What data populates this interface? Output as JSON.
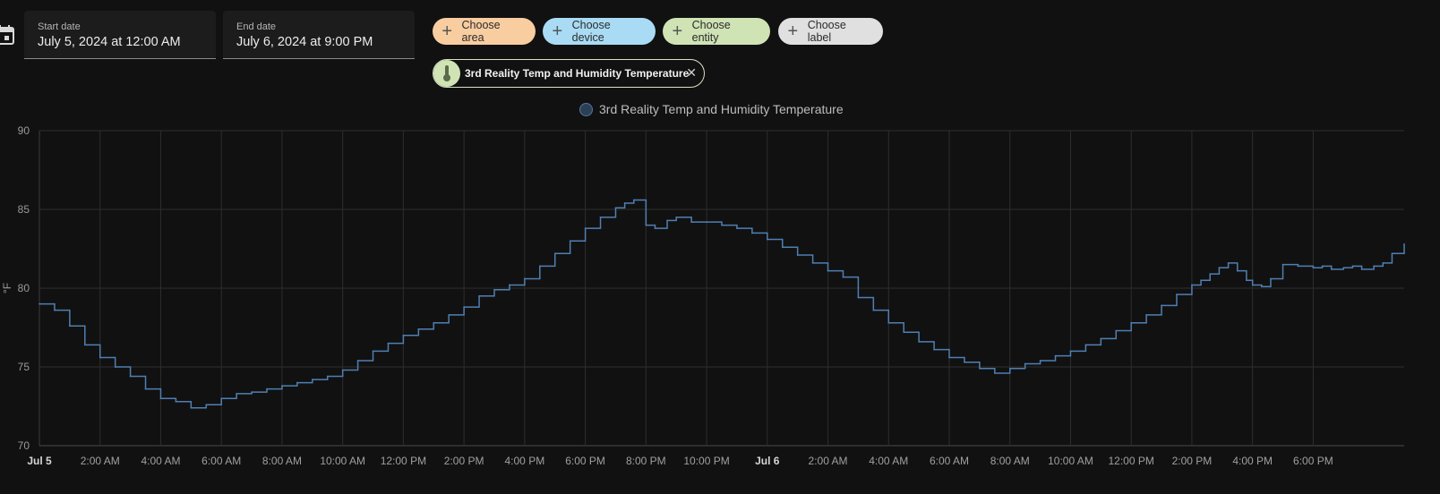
{
  "start_date": {
    "label": "Start date",
    "value": "July 5, 2024 at 12:00 AM"
  },
  "end_date": {
    "label": "End date",
    "value": "July 6, 2024 at 9:00 PM"
  },
  "chips": {
    "area": "Choose area",
    "device": "Choose device",
    "entity": "Choose entity",
    "label": "Choose label"
  },
  "selected_entity": "3rd Reality Temp and Humidity Temperature",
  "colors": {
    "area_chip": "#f8cda0",
    "device_chip": "#a9dcf4",
    "entity_chip": "#cfe3b5",
    "label_chip": "#e0e0e0",
    "series_line": "#4f7fb3"
  },
  "chart_data": {
    "type": "line",
    "legend_position": "top-center",
    "grid": true,
    "ylabel": "°F",
    "ylim": [
      70,
      90
    ],
    "yticks": [
      70,
      75,
      80,
      85,
      90
    ],
    "xlim": [
      0,
      45
    ],
    "x_ticks": [
      {
        "x": 0,
        "label": "Jul 5",
        "bold": true
      },
      {
        "x": 2,
        "label": "2:00 AM"
      },
      {
        "x": 4,
        "label": "4:00 AM"
      },
      {
        "x": 6,
        "label": "6:00 AM"
      },
      {
        "x": 8,
        "label": "8:00 AM"
      },
      {
        "x": 10,
        "label": "10:00 AM"
      },
      {
        "x": 12,
        "label": "12:00 PM"
      },
      {
        "x": 14,
        "label": "2:00 PM"
      },
      {
        "x": 16,
        "label": "4:00 PM"
      },
      {
        "x": 18,
        "label": "6:00 PM"
      },
      {
        "x": 20,
        "label": "8:00 PM"
      },
      {
        "x": 22,
        "label": "10:00 PM"
      },
      {
        "x": 24,
        "label": "Jul 6",
        "bold": true
      },
      {
        "x": 26,
        "label": "2:00 AM"
      },
      {
        "x": 28,
        "label": "4:00 AM"
      },
      {
        "x": 30,
        "label": "6:00 AM"
      },
      {
        "x": 32,
        "label": "8:00 AM"
      },
      {
        "x": 34,
        "label": "10:00 AM"
      },
      {
        "x": 36,
        "label": "12:00 PM"
      },
      {
        "x": 38,
        "label": "2:00 PM"
      },
      {
        "x": 40,
        "label": "4:00 PM"
      },
      {
        "x": 42,
        "label": "6:00 PM"
      }
    ],
    "series": [
      {
        "name": "3rd Reality Temp and Humidity Temperature",
        "step": true,
        "x": [
          0,
          0.5,
          1,
          1.5,
          2,
          2.5,
          3,
          3.5,
          4,
          4.5,
          5,
          5.5,
          6,
          6.5,
          7,
          7.5,
          8,
          8.5,
          9,
          9.5,
          10,
          10.5,
          11,
          11.5,
          12,
          12.5,
          13,
          13.5,
          14,
          14.5,
          15,
          15.5,
          16,
          16.5,
          17,
          17.5,
          18,
          18.5,
          19,
          19.3,
          19.6,
          20,
          20.3,
          20.7,
          21,
          21.5,
          22,
          22.5,
          23,
          23.5,
          24,
          24.5,
          25,
          25.5,
          26,
          26.5,
          27,
          27.5,
          28,
          28.5,
          29,
          29.5,
          30,
          30.5,
          31,
          31.5,
          32,
          32.5,
          33,
          33.5,
          34,
          34.5,
          35,
          35.5,
          36,
          36.5,
          37,
          37.5,
          38,
          38.3,
          38.6,
          38.9,
          39.2,
          39.5,
          39.8,
          40,
          40.3,
          40.6,
          41,
          41.5,
          42,
          42.3,
          42.6,
          43,
          43.3,
          43.6,
          44,
          44.3,
          44.6,
          45
        ],
        "y": [
          79.0,
          78.6,
          77.6,
          76.4,
          75.6,
          75.0,
          74.4,
          73.6,
          73.0,
          72.8,
          72.4,
          72.6,
          73.0,
          73.3,
          73.4,
          73.6,
          73.8,
          74.0,
          74.2,
          74.4,
          74.8,
          75.4,
          76.0,
          76.5,
          77.0,
          77.4,
          77.8,
          78.3,
          78.8,
          79.5,
          79.9,
          80.2,
          80.6,
          81.4,
          82.2,
          83.0,
          83.8,
          84.5,
          85.1,
          85.4,
          85.6,
          84.0,
          83.8,
          84.3,
          84.5,
          84.2,
          84.2,
          84.0,
          83.8,
          83.5,
          83.1,
          82.6,
          82.1,
          81.6,
          81.1,
          80.7,
          79.4,
          78.6,
          77.8,
          77.2,
          76.6,
          76.1,
          75.6,
          75.3,
          74.9,
          74.6,
          74.9,
          75.2,
          75.4,
          75.7,
          76.0,
          76.4,
          76.8,
          77.3,
          77.8,
          78.3,
          78.9,
          79.6,
          80.2,
          80.5,
          80.9,
          81.3,
          81.6,
          81.1,
          80.5,
          80.2,
          80.1,
          80.6,
          81.5,
          81.4,
          81.3,
          81.4,
          81.2,
          81.3,
          81.4,
          81.2,
          81.4,
          81.6,
          82.2,
          82.8
        ]
      }
    ]
  }
}
